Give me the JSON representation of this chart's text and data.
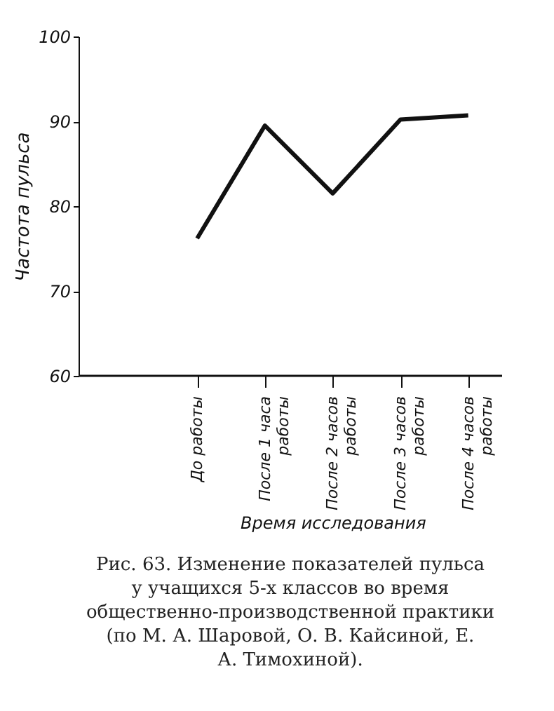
{
  "chart_data": {
    "type": "line",
    "categories": [
      "До работы",
      "После 1 часа работы",
      "После 2 часов работы",
      "После 3 часов работы",
      "После 4 часов работы"
    ],
    "values": [
      76.2,
      89.5,
      81.5,
      90.2,
      90.7
    ],
    "color": "#111111",
    "ylim": [
      60,
      100
    ],
    "yticks": [
      60,
      70,
      80,
      90,
      100
    ],
    "ylabel": "Частота пульса",
    "xlabel": "Время исследования",
    "grid": false,
    "marker": "none",
    "line_style": "solid",
    "annotations": [
      "Рис. 63. Изменение показателей пульса у учащихся 5-х классов во время общественно-производственной практики (по М. А. Шаровой, О. В. Кайсиной, Е. А. Тимохиной)."
    ]
  }
}
